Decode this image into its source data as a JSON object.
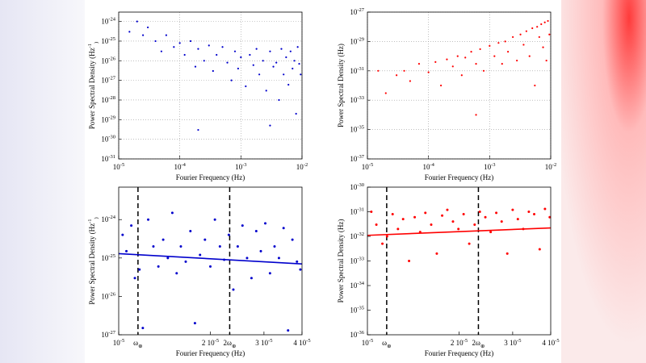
{
  "chart_data": [
    {
      "type": "scatter",
      "xlabel": "Fourier Frequency (Hz)",
      "ylabel": "Power Spectral Density (Hz-1)",
      "log_x": true,
      "log_y": true,
      "grid": true,
      "color": "#0000cc",
      "xlim": [
        1e-05,
        0.01
      ],
      "xticks": [
        {
          "value": 1e-05,
          "label": "10-5"
        },
        {
          "value": 0.0001,
          "label": "10-4"
        },
        {
          "value": 0.001,
          "label": "10-3"
        },
        {
          "value": 0.01,
          "label": "10-2"
        }
      ],
      "ylim": [
        1e-31,
        3e-24
      ],
      "yticks": [
        {
          "value": 1e-24,
          "label": "10-24"
        },
        {
          "value": 1e-25,
          "label": "10-25"
        },
        {
          "value": 1e-26,
          "label": "10-26"
        },
        {
          "value": 1e-27,
          "label": "10-27"
        },
        {
          "value": 1e-28,
          "label": "10-28"
        },
        {
          "value": 1e-29,
          "label": "10-29"
        },
        {
          "value": 1e-30,
          "label": "10-30"
        },
        {
          "value": 1e-31,
          "label": "10-31"
        }
      ],
      "x": [
        1.5e-05,
        2e-05,
        2.5e-05,
        3e-05,
        4e-05,
        5e-05,
        6e-05,
        8e-05,
        0.0001,
        0.00012,
        0.00015,
        0.00018,
        0.0002,
        0.00025,
        0.0003,
        0.00035,
        0.0004,
        0.0005,
        0.0006,
        0.0007,
        0.0008,
        0.0009,
        0.001,
        0.0012,
        0.0014,
        0.0016,
        0.0018,
        0.002,
        0.0023,
        0.0026,
        0.003,
        0.0034,
        0.0038,
        0.0042,
        0.0046,
        0.005,
        0.0055,
        0.006,
        0.0065,
        0.007,
        0.0075,
        0.008,
        0.0085,
        0.009,
        0.0095,
        0.0002,
        0.003
      ],
      "values": [
        3e-25,
        1e-24,
        2e-25,
        5e-25,
        1e-25,
        3e-26,
        2e-25,
        5e-26,
        8e-26,
        2e-26,
        1e-25,
        5e-27,
        4e-26,
        1e-26,
        6e-26,
        3e-27,
        2e-26,
        5e-26,
        8e-27,
        1e-27,
        3e-26,
        4e-27,
        1.5e-26,
        5e-28,
        2e-26,
        6e-27,
        4e-26,
        2e-27,
        1e-26,
        3e-28,
        3e-26,
        5e-27,
        8e-27,
        1e-28,
        4e-26,
        2e-27,
        1.5e-26,
        6e-28,
        3e-26,
        4e-27,
        1e-26,
        2e-29,
        5e-26,
        7e-27,
        2e-27,
        3e-30,
        5e-30
      ]
    },
    {
      "type": "scatter",
      "xlabel": "Fourier Frequency (Hz)",
      "ylabel": "Power Spectral Density (Hz)",
      "log_x": true,
      "log_y": true,
      "grid": true,
      "color": "#ff0000",
      "xlim": [
        1e-05,
        0.01
      ],
      "xticks": [
        {
          "value": 1e-05,
          "label": "10-5"
        },
        {
          "value": 0.0001,
          "label": "10-4"
        },
        {
          "value": 0.001,
          "label": "10-3"
        },
        {
          "value": 0.01,
          "label": "10-2"
        }
      ],
      "ylim": [
        1e-37,
        1e-27
      ],
      "yticks": [
        {
          "value": 1e-27,
          "label": "10-27"
        },
        {
          "value": 1e-29,
          "label": "10-29"
        },
        {
          "value": 1e-31,
          "label": "10-31"
        },
        {
          "value": 1e-33,
          "label": "10-33"
        },
        {
          "value": 1e-35,
          "label": "10-35"
        },
        {
          "value": 1e-37,
          "label": "10-37"
        }
      ],
      "x": [
        1.5e-05,
        2e-05,
        3e-05,
        4e-05,
        5e-05,
        7e-05,
        0.0001,
        0.00013,
        0.00016,
        0.0002,
        0.00025,
        0.0003,
        0.00035,
        0.0004,
        0.0005,
        0.0006,
        0.0007,
        0.0008,
        0.001,
        0.0012,
        0.0014,
        0.0016,
        0.0018,
        0.002,
        0.0024,
        0.0028,
        0.0032,
        0.0036,
        0.004,
        0.0045,
        0.005,
        0.0055,
        0.006,
        0.0065,
        0.007,
        0.0075,
        0.008,
        0.0085,
        0.009,
        0.0095,
        0.0006
      ],
      "values": [
        1e-31,
        3e-33,
        5e-32,
        1e-31,
        2e-32,
        3e-31,
        8e-32,
        4e-31,
        1e-32,
        6e-31,
        2e-31,
        1e-30,
        5e-32,
        8e-31,
        2e-30,
        3e-31,
        3e-30,
        1e-31,
        5e-30,
        1e-30,
        8e-30,
        3e-31,
        1e-29,
        2e-30,
        2e-29,
        5e-31,
        3e-29,
        6e-30,
        5e-29,
        1e-30,
        8e-29,
        1e-32,
        1e-28,
        2e-29,
        1.5e-28,
        4e-30,
        2e-28,
        5e-31,
        2.5e-28,
        3e-29,
        1e-34
      ]
    },
    {
      "type": "scatter",
      "xlabel": "Fourier Frequency (Hz)",
      "ylabel": "Power Spectral Density (Hz-1)",
      "log_x": true,
      "log_y": true,
      "grid": false,
      "color": "#0000cc",
      "xlim": [
        1e-05,
        4e-05
      ],
      "xticks": [
        {
          "value": 1e-05,
          "label": "10-5"
        },
        {
          "value": 1.157e-05,
          "label": "ω⊕"
        },
        {
          "value": 2e-05,
          "label": "2 10-5"
        },
        {
          "value": 2.315e-05,
          "label": "2ω⊕"
        },
        {
          "value": 3e-05,
          "label": "3 10-5"
        },
        {
          "value": 4e-05,
          "label": "4 10-5"
        }
      ],
      "ylim": [
        1e-27,
        7e-24
      ],
      "yticks": [
        {
          "value": 1e-24,
          "label": "10-24"
        },
        {
          "value": 1e-25,
          "label": "10-25"
        },
        {
          "value": 1e-26,
          "label": "10-26"
        },
        {
          "value": 1e-27,
          "label": "10-27"
        }
      ],
      "vlines": [
        1.157e-05,
        2.315e-05
      ],
      "fit": {
        "x": [
          1e-05,
          4e-05
        ],
        "y": [
          1.3e-25,
          7e-26
        ]
      },
      "x": [
        1.03e-05,
        1.06e-05,
        1.1e-05,
        1.13e-05,
        1.17e-05,
        1.2e-05,
        1.25e-05,
        1.3e-05,
        1.35e-05,
        1.4e-05,
        1.45e-05,
        1.5e-05,
        1.55e-05,
        1.6e-05,
        1.66e-05,
        1.72e-05,
        1.78e-05,
        1.85e-05,
        1.92e-05,
        2e-05,
        2.07e-05,
        2.15e-05,
        2.22e-05,
        2.3e-05,
        2.38e-05,
        2.46e-05,
        2.55e-05,
        2.64e-05,
        2.73e-05,
        2.83e-05,
        2.93e-05,
        3.03e-05,
        3.14e-05,
        3.25e-05,
        3.36e-05,
        3.48e-05,
        3.6e-05,
        3.72e-05,
        3.85e-05,
        3.95e-05
      ],
      "values": [
        4e-25,
        1.5e-25,
        7e-25,
        3e-26,
        5e-26,
        1.5e-27,
        1e-24,
        2e-25,
        6e-26,
        3e-25,
        1e-25,
        1.5e-24,
        4e-26,
        2e-25,
        8e-26,
        5e-25,
        2e-27,
        1.2e-25,
        3e-25,
        6e-26,
        1e-24,
        2e-25,
        9e-26,
        4e-25,
        1.5e-26,
        2e-25,
        7e-25,
        1e-25,
        3e-26,
        5e-25,
        1.5e-25,
        8e-25,
        4e-26,
        2e-25,
        1e-25,
        6e-25,
        1.3e-27,
        3e-25,
        8e-26,
        5e-26
      ]
    },
    {
      "type": "scatter",
      "xlabel": "Fourier Frequency (Hz)",
      "ylabel": "Power Spectral Density (Hz)",
      "log_x": true,
      "log_y": true,
      "grid": false,
      "color": "#ff0000",
      "xlim": [
        1e-05,
        4e-05
      ],
      "xticks": [
        {
          "value": 1e-05,
          "label": "10-5"
        },
        {
          "value": 1.157e-05,
          "label": "ω⊕"
        },
        {
          "value": 2e-05,
          "label": "2 10-5"
        },
        {
          "value": 2.315e-05,
          "label": "2ω⊕"
        },
        {
          "value": 3e-05,
          "label": "3 10-5"
        },
        {
          "value": 4e-05,
          "label": "4 10-5"
        }
      ],
      "ylim": [
        1e-36,
        1e-30
      ],
      "yticks": [
        {
          "value": 1e-30,
          "label": "10-30"
        },
        {
          "value": 1e-31,
          "label": "10-31"
        },
        {
          "value": 1e-32,
          "label": "10-32"
        },
        {
          "value": 1e-33,
          "label": "10-33"
        },
        {
          "value": 1e-34,
          "label": "10-34"
        },
        {
          "value": 1e-35,
          "label": "10-35"
        },
        {
          "value": 1e-36,
          "label": "10-36"
        }
      ],
      "vlines": [
        1.157e-05,
        2.315e-05
      ],
      "fit": {
        "x": [
          1e-05,
          4e-05
        ],
        "y": [
          1.1e-32,
          2.2e-32
        ]
      },
      "x": [
        1.03e-05,
        1.07e-05,
        1.12e-05,
        1.16e-05,
        1.21e-05,
        1.26e-05,
        1.31e-05,
        1.37e-05,
        1.43e-05,
        1.49e-05,
        1.55e-05,
        1.62e-05,
        1.69e-05,
        1.76e-05,
        1.83e-05,
        1.91e-05,
        1.99e-05,
        2.07e-05,
        2.16e-05,
        2.25e-05,
        2.34e-05,
        2.44e-05,
        2.54e-05,
        2.65e-05,
        2.76e-05,
        2.88e-05,
        3e-05,
        3.12e-05,
        3.25e-05,
        3.39e-05,
        3.53e-05,
        3.68e-05,
        3.83e-05,
        3.97e-05
      ],
      "values": [
        1e-31,
        3e-32,
        5e-33,
        1e-32,
        8e-32,
        2e-32,
        5e-32,
        1e-33,
        6e-32,
        1.5e-32,
        9e-32,
        3e-32,
        2e-33,
        7e-32,
        1.2e-31,
        4e-32,
        2e-32,
        8e-32,
        5e-33,
        3e-32,
        1e-31,
        6e-32,
        1.5e-32,
        9e-32,
        4e-32,
        2e-33,
        1.2e-31,
        5e-32,
        2e-32,
        1e-31,
        8e-32,
        3e-33,
        1.3e-31,
        6e-32
      ]
    }
  ]
}
